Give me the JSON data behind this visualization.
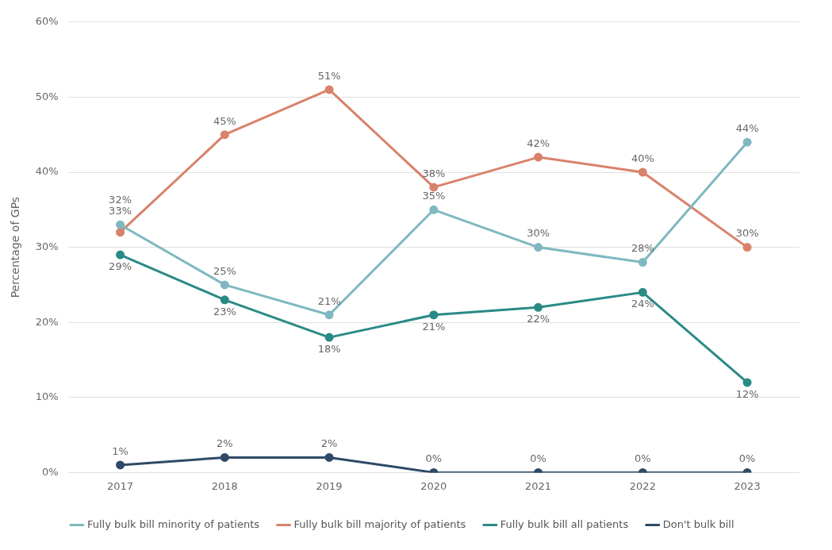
{
  "chart_data": {
    "type": "line",
    "ylabel": "Percentage of GPs",
    "categories": [
      "2017",
      "2018",
      "2019",
      "2020",
      "2021",
      "2022",
      "2023"
    ],
    "series": [
      {
        "name": "Fully bulk bill minority of patients",
        "color": "#7fb8c0",
        "values": [
          33,
          25,
          21,
          35,
          30,
          28,
          44
        ],
        "value_labels": [
          "33%",
          "25%",
          "21%",
          "35%",
          "30%",
          "28%",
          "44%"
        ]
      },
      {
        "name": "Fully bulk bill majority of patients",
        "color": "#d9826a",
        "values": [
          32,
          45,
          51,
          38,
          42,
          40,
          30
        ],
        "value_labels": [
          "32%",
          "45%",
          "51%",
          "38%",
          "42%",
          "40%",
          "30%"
        ]
      },
      {
        "name": "Fully bulk bill all patients",
        "color": "#2a8a86",
        "values": [
          29,
          23,
          18,
          21,
          22,
          24,
          12
        ],
        "value_labels": [
          "29%",
          "23%",
          "18%",
          "21%",
          "22%",
          "24%",
          "12%"
        ]
      },
      {
        "name": "Don't bulk bill",
        "color": "#2f4a66",
        "values": [
          1,
          2,
          2,
          0,
          0,
          0,
          0
        ],
        "value_labels": [
          "1%",
          "2%",
          "2%",
          "0%",
          "0%",
          "0%",
          "0%"
        ]
      }
    ],
    "ylim": [
      0,
      60
    ],
    "yticks": [
      {
        "value": 0,
        "label": "0%"
      },
      {
        "value": 10,
        "label": "10%"
      },
      {
        "value": 20,
        "label": "20%"
      },
      {
        "value": 30,
        "label": "30%"
      },
      {
        "value": 40,
        "label": "40%"
      },
      {
        "value": 50,
        "label": "50%"
      },
      {
        "value": 60,
        "label": "60%"
      }
    ],
    "grid": "y",
    "legend": "bottom",
    "marker": "circle",
    "line_style": "solid"
  }
}
